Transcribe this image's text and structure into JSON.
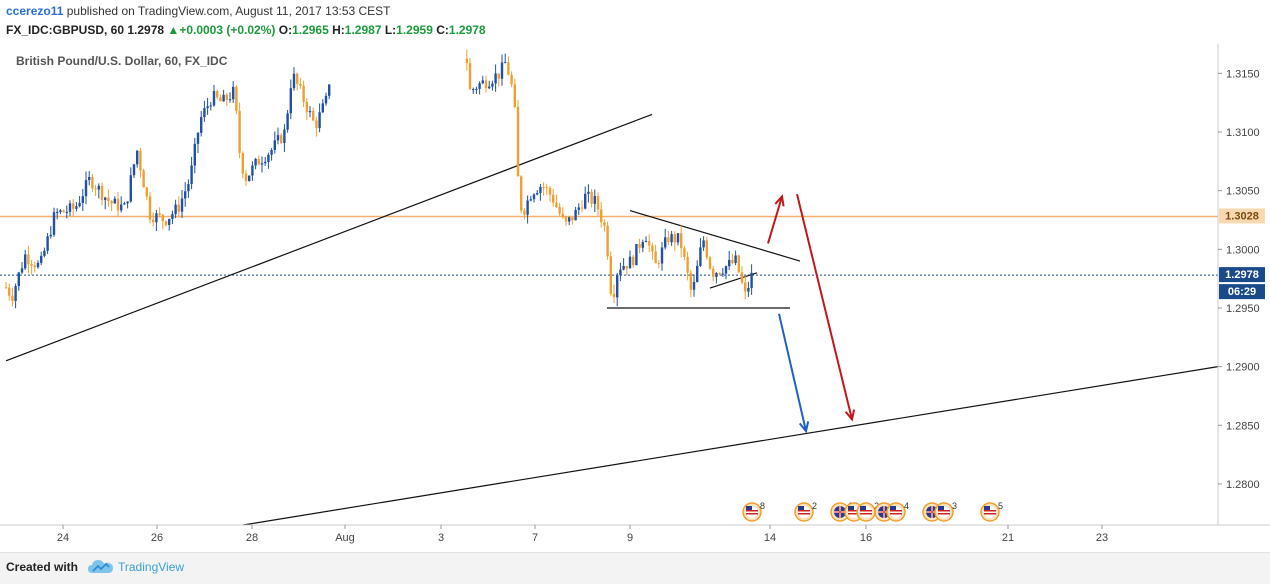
{
  "header": {
    "user": "ccerezo11",
    "published": "published on TradingView.com, August 11, 2017 13:53 CEST",
    "symbol": "FX_IDC:GBPUSD, 60",
    "last": "1.2978",
    "change": "+0.0003 (+0.02%)",
    "o_label": "O:",
    "o": "1.2965",
    "h_label": "H:",
    "h": "1.2987",
    "l_label": "L:",
    "l": "1.2959",
    "c_label": "C:",
    "c": "1.2978"
  },
  "footer": {
    "created": "Created with",
    "brand": "TradingView"
  },
  "colors": {
    "up": "#2050a8",
    "down": "#f0a030",
    "arrow_up": "#c01818",
    "arrow_down": "#2060c8",
    "resistance": "#f5b070",
    "price_line": "#1a4a8a",
    "accent": "#2a6fd6"
  },
  "chart_data": {
    "type": "candlestick",
    "title": "British Pound/U.S. Dollar, 60, FX_IDC",
    "ylim": [
      1.2765,
      1.3175
    ],
    "y_ticks": [
      "1.3150",
      "1.3100",
      "1.3050",
      "1.3000",
      "1.2950",
      "1.2900",
      "1.2850",
      "1.2800"
    ],
    "y_tick_values": [
      1.315,
      1.31,
      1.305,
      1.3,
      1.295,
      1.29,
      1.285,
      1.28
    ],
    "x_tick_labels": [
      "24",
      "26",
      "28",
      "Aug",
      "3",
      "7",
      "9",
      "14",
      "16",
      "21",
      "23"
    ],
    "price_badges": [
      {
        "label": "1.3028",
        "value": 1.3028,
        "kind": "resistance"
      },
      {
        "label": "1.2978",
        "value": 1.2978,
        "kind": "last"
      },
      {
        "label": "06:29",
        "value": 1.2962,
        "kind": "countdown"
      }
    ],
    "price_path": [
      [
        0,
        1.2975
      ],
      [
        12,
        1.296
      ],
      [
        25,
        1.2995
      ],
      [
        40,
        1.2985
      ],
      [
        55,
        1.303
      ],
      [
        75,
        1.3035
      ],
      [
        90,
        1.306
      ],
      [
        110,
        1.304
      ],
      [
        125,
        1.3035
      ],
      [
        137,
        1.3085
      ],
      [
        150,
        1.303
      ],
      [
        165,
        1.3025
      ],
      [
        178,
        1.3035
      ],
      [
        190,
        1.306
      ],
      [
        200,
        1.311
      ],
      [
        212,
        1.313
      ],
      [
        222,
        1.3125
      ],
      [
        235,
        1.3135
      ],
      [
        238,
        1.309
      ],
      [
        245,
        1.306
      ],
      [
        258,
        1.3075
      ],
      [
        272,
        1.3085
      ],
      [
        285,
        1.31
      ],
      [
        292,
        1.315
      ],
      [
        305,
        1.3125
      ],
      [
        315,
        1.3105
      ],
      [
        328,
        1.313
      ],
      [
        332,
        1.3175
      ],
      [
        465,
        1.3175
      ],
      [
        470,
        1.3135
      ],
      [
        478,
        1.314
      ],
      [
        490,
        1.3145
      ],
      [
        500,
        1.315
      ],
      [
        506,
        1.316
      ],
      [
        514,
        1.313
      ],
      [
        518,
        1.306
      ],
      [
        522,
        1.303
      ],
      [
        532,
        1.305
      ],
      [
        542,
        1.3055
      ],
      [
        552,
        1.3045
      ],
      [
        565,
        1.302
      ],
      [
        575,
        1.303
      ],
      [
        585,
        1.3045
      ],
      [
        596,
        1.304
      ],
      [
        606,
        1.3015
      ],
      [
        612,
        1.2955
      ],
      [
        618,
        1.2985
      ],
      [
        632,
        1.299
      ],
      [
        645,
        1.3015
      ],
      [
        655,
        1.2985
      ],
      [
        668,
        1.301
      ],
      [
        680,
        1.3008
      ],
      [
        692,
        1.296
      ],
      [
        703,
        1.301
      ],
      [
        712,
        1.298
      ],
      [
        725,
        1.2985
      ],
      [
        736,
        1.299
      ],
      [
        745,
        1.296
      ],
      [
        752,
        1.2978
      ]
    ],
    "trendlines": [
      {
        "from": [
          6,
          1.2905
        ],
        "to": [
          652,
          1.3115
        ]
      },
      {
        "from": [
          243,
          1.2765
        ],
        "to": [
          1218,
          1.29
        ]
      },
      {
        "from": [
          630,
          1.3033
        ],
        "to": [
          800,
          1.299
        ]
      },
      {
        "from": [
          607,
          1.295
        ],
        "to": [
          790,
          1.295
        ]
      },
      {
        "from": [
          710,
          1.2967
        ],
        "to": [
          757,
          1.298
        ]
      }
    ],
    "arrows": [
      {
        "from": [
          768,
          1.3005
        ],
        "to": [
          782,
          1.3045
        ],
        "color": "red"
      },
      {
        "from": [
          797,
          1.3047
        ],
        "to": [
          852,
          1.2855
        ],
        "color": "red"
      },
      {
        "from": [
          779,
          1.2945
        ],
        "to": [
          806,
          1.2845
        ],
        "color": "blue"
      }
    ],
    "events": [
      {
        "label": "8",
        "flag": "us"
      },
      {
        "label": "2",
        "flag": "us"
      },
      {
        "label": "15",
        "flag": "uk"
      },
      {
        "label": "0",
        "flag": "us"
      },
      {
        "label": "2",
        "flag": "us"
      },
      {
        "label": "6",
        "flag": "uk"
      },
      {
        "label": "4",
        "flag": "us"
      },
      {
        "label": "4",
        "flag": "uk"
      },
      {
        "label": "3",
        "flag": "us"
      },
      {
        "label": "5",
        "flag": "us"
      }
    ]
  }
}
